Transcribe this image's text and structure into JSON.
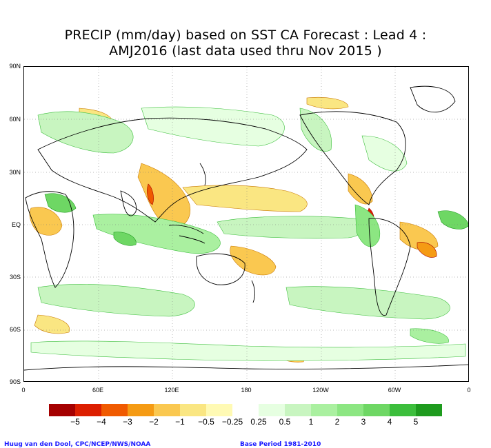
{
  "title": {
    "line1": "PRECIP (mm/day) based on SST CA Forecast : Lead 4 :",
    "line2": "AMJ2016 (last data used thru Nov 2015 )"
  },
  "axes": {
    "y_labels": [
      "90N",
      "60N",
      "30N",
      "EQ",
      "30S",
      "60S",
      "90S"
    ],
    "x_labels": [
      "0",
      "60E",
      "120E",
      "180",
      "120W",
      "60W",
      "0"
    ]
  },
  "legend": {
    "bins": [
      {
        "color": "#a50000"
      },
      {
        "color": "#dc1e00"
      },
      {
        "color": "#f05a00"
      },
      {
        "color": "#f59b14"
      },
      {
        "color": "#fac850"
      },
      {
        "color": "#fae682"
      },
      {
        "color": "#fffab4"
      },
      {
        "color": "#ffffff"
      },
      {
        "color": "#e6ffe1"
      },
      {
        "color": "#c8f5c0"
      },
      {
        "color": "#aaf0a0"
      },
      {
        "color": "#8ce682"
      },
      {
        "color": "#6ed764"
      },
      {
        "color": "#3cbe3c"
      },
      {
        "color": "#1e9b1e"
      }
    ],
    "labels": [
      "−5",
      "−4",
      "−3",
      "−2",
      "−1",
      "−0.5",
      "−0.25",
      "0.25",
      "0.5",
      "1",
      "2",
      "3",
      "4",
      "5"
    ]
  },
  "footer": {
    "credit": "Huug van den Dool, CPC/NCEP/NWS/NOAA",
    "period": "Base Period 1981-2010"
  },
  "colors": {
    "neg_light": "#fffab4",
    "neg_mid": "#fae682",
    "neg_strong": "#fac850",
    "neg_deep": "#f59b14",
    "neg_red": "#dc1e00",
    "pos_light": "#e6ffe1",
    "pos_mid": "#aaf0a0",
    "pos_strong": "#6ed764",
    "pos_deep": "#3cbe3c"
  }
}
